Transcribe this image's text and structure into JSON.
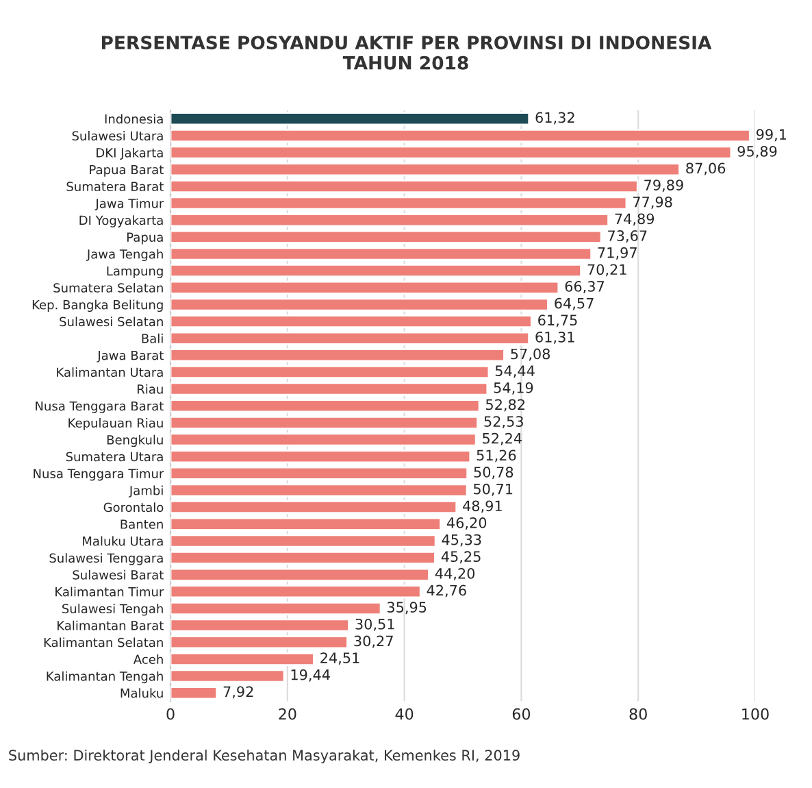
{
  "chart_data": {
    "type": "bar",
    "orientation": "horizontal",
    "title": "PERSENTASE POSYANDU AKTIF PER PROVINSI DI INDONESIA\nTAHUN 2018",
    "categories": [
      "Indonesia",
      "Sulawesi Utara",
      "DKI Jakarta",
      "Papua Barat",
      "Sumatera Barat",
      "Jawa Timur",
      "DI Yogyakarta",
      "Papua",
      "Jawa Tengah",
      "Lampung",
      "Sumatera Selatan",
      "Kep. Bangka Belitung",
      "Sulawesi Selatan",
      "Bali",
      "Jawa Barat",
      "Kalimantan Utara",
      "Riau",
      "Nusa Tenggara Barat",
      "Kepulauan Riau",
      "Bengkulu",
      "Sumatera Utara",
      "Nusa Tenggara Timur",
      "Jambi",
      "Gorontalo",
      "Banten",
      "Maluku Utara",
      "Sulawesi Tenggara",
      "Sulawesi Barat",
      "Kalimantan Timur",
      "Sulawesi Tengah",
      "Kalimantan Barat",
      "Kalimantan Selatan",
      "Aceh",
      "Kalimantan Tengah",
      "Maluku"
    ],
    "values": [
      61.32,
      99.1,
      95.89,
      87.06,
      79.89,
      77.98,
      74.89,
      73.67,
      71.97,
      70.21,
      66.37,
      64.57,
      61.75,
      61.31,
      57.08,
      54.44,
      54.19,
      52.82,
      52.53,
      52.24,
      51.26,
      50.78,
      50.71,
      48.91,
      46.2,
      45.33,
      45.25,
      44.2,
      42.76,
      35.95,
      30.51,
      30.27,
      24.51,
      19.44,
      7.92
    ],
    "value_labels": [
      "61,32",
      "99,1",
      "95,89",
      "87,06",
      "79,89",
      "77,98",
      "74,89",
      "73,67",
      "71,97",
      "70,21",
      "66,37",
      "64,57",
      "61,75",
      "61,31",
      "57,08",
      "54,44",
      "54,19",
      "52,82",
      "52,53",
      "52,24",
      "51,26",
      "50,78",
      "50,71",
      "48,91",
      "46,20",
      "45,33",
      "45,25",
      "44,20",
      "42,76",
      "35,95",
      "30,51",
      "30,27",
      "24,51",
      "19,44",
      "7,92"
    ],
    "colors": [
      "#1d4a55",
      "#ee7f78",
      "#ee7f78",
      "#ee7f78",
      "#ee7f78",
      "#ee7f78",
      "#ee7f78",
      "#ee7f78",
      "#ee7f78",
      "#ee7f78",
      "#ee7f78",
      "#ee7f78",
      "#ee7f78",
      "#ee7f78",
      "#ee7f78",
      "#ee7f78",
      "#ee7f78",
      "#ee7f78",
      "#ee7f78",
      "#ee7f78",
      "#ee7f78",
      "#ee7f78",
      "#ee7f78",
      "#ee7f78",
      "#ee7f78",
      "#ee7f78",
      "#ee7f78",
      "#ee7f78",
      "#ee7f78",
      "#ee7f78",
      "#ee7f78",
      "#ee7f78",
      "#ee7f78",
      "#ee7f78",
      "#ee7f78"
    ],
    "xlim": [
      0,
      100
    ],
    "xticks": [
      0,
      20,
      40,
      60,
      80,
      100
    ],
    "grid": "x",
    "legend": false,
    "annotations": [
      "Sumber: Direktorat Jenderal Kesehatan Masyarakat, Kemenkes RI, 2019"
    ]
  }
}
